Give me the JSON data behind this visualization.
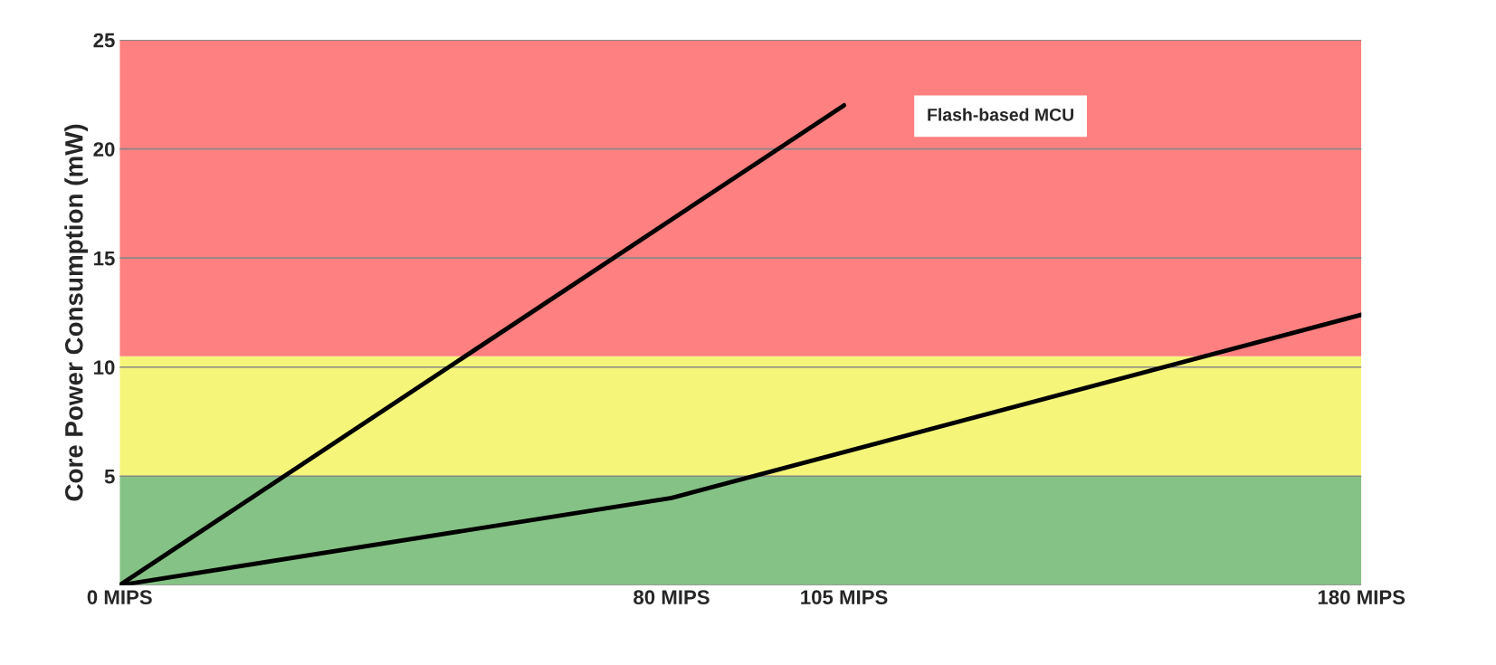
{
  "chart_data": {
    "type": "line",
    "ylabel": "Core Power Consumption (mW)",
    "xlim": [
      0,
      180
    ],
    "xticks": [
      {
        "value": 0,
        "label": "0 MIPS"
      },
      {
        "value": 80,
        "label": "80 MIPS"
      },
      {
        "value": 105,
        "label": "105 MIPS"
      },
      {
        "value": 180,
        "label": "180 MIPS"
      }
    ],
    "ylim": [
      0,
      25
    ],
    "yticks": [
      {
        "value": 0,
        "label": null
      },
      5,
      10,
      15,
      20,
      25
    ],
    "grid": "y",
    "series": [
      {
        "name": "Flash-based MCU",
        "color": "#000000",
        "x": [
          0,
          105
        ],
        "values": [
          0,
          22
        ]
      },
      {
        "color": "#000000",
        "x": [
          0,
          80,
          180
        ],
        "values": [
          0,
          4,
          12.4
        ]
      }
    ],
    "bands": [
      {
        "axis": "y",
        "from": 0,
        "to": 5,
        "color": "#85c285"
      },
      {
        "axis": "y",
        "from": 5,
        "to": 10.5,
        "color": "#f5f57a"
      },
      {
        "axis": "y",
        "from": 10.5,
        "to": 25,
        "color": "#ff8080"
      }
    ]
  }
}
